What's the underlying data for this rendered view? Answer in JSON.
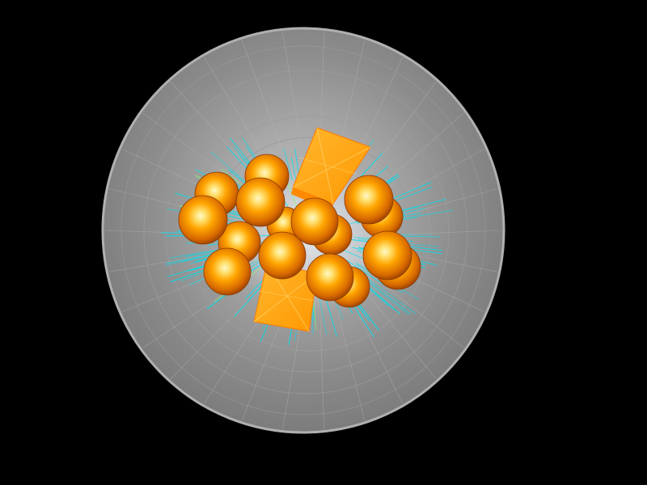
{
  "scene": {
    "background": "#000000",
    "shell_color": "#8a8a8a",
    "shell_edge_color": "#a8a8a8",
    "wire_color": "#00e5ee",
    "accent_wire_color": "#7fff6a",
    "crystal_color": "#ffa500",
    "sphere_color_light": "#fff3a0",
    "sphere_color_mid": "#ff9e00",
    "sphere_color_dark": "#b04800",
    "objects": {
      "shell": "translucent-spherical-shell",
      "spheres": "orange-spheres",
      "crystals": "orange-crystal-prisms",
      "wireframe": "cyan-wireframe-lines"
    }
  }
}
